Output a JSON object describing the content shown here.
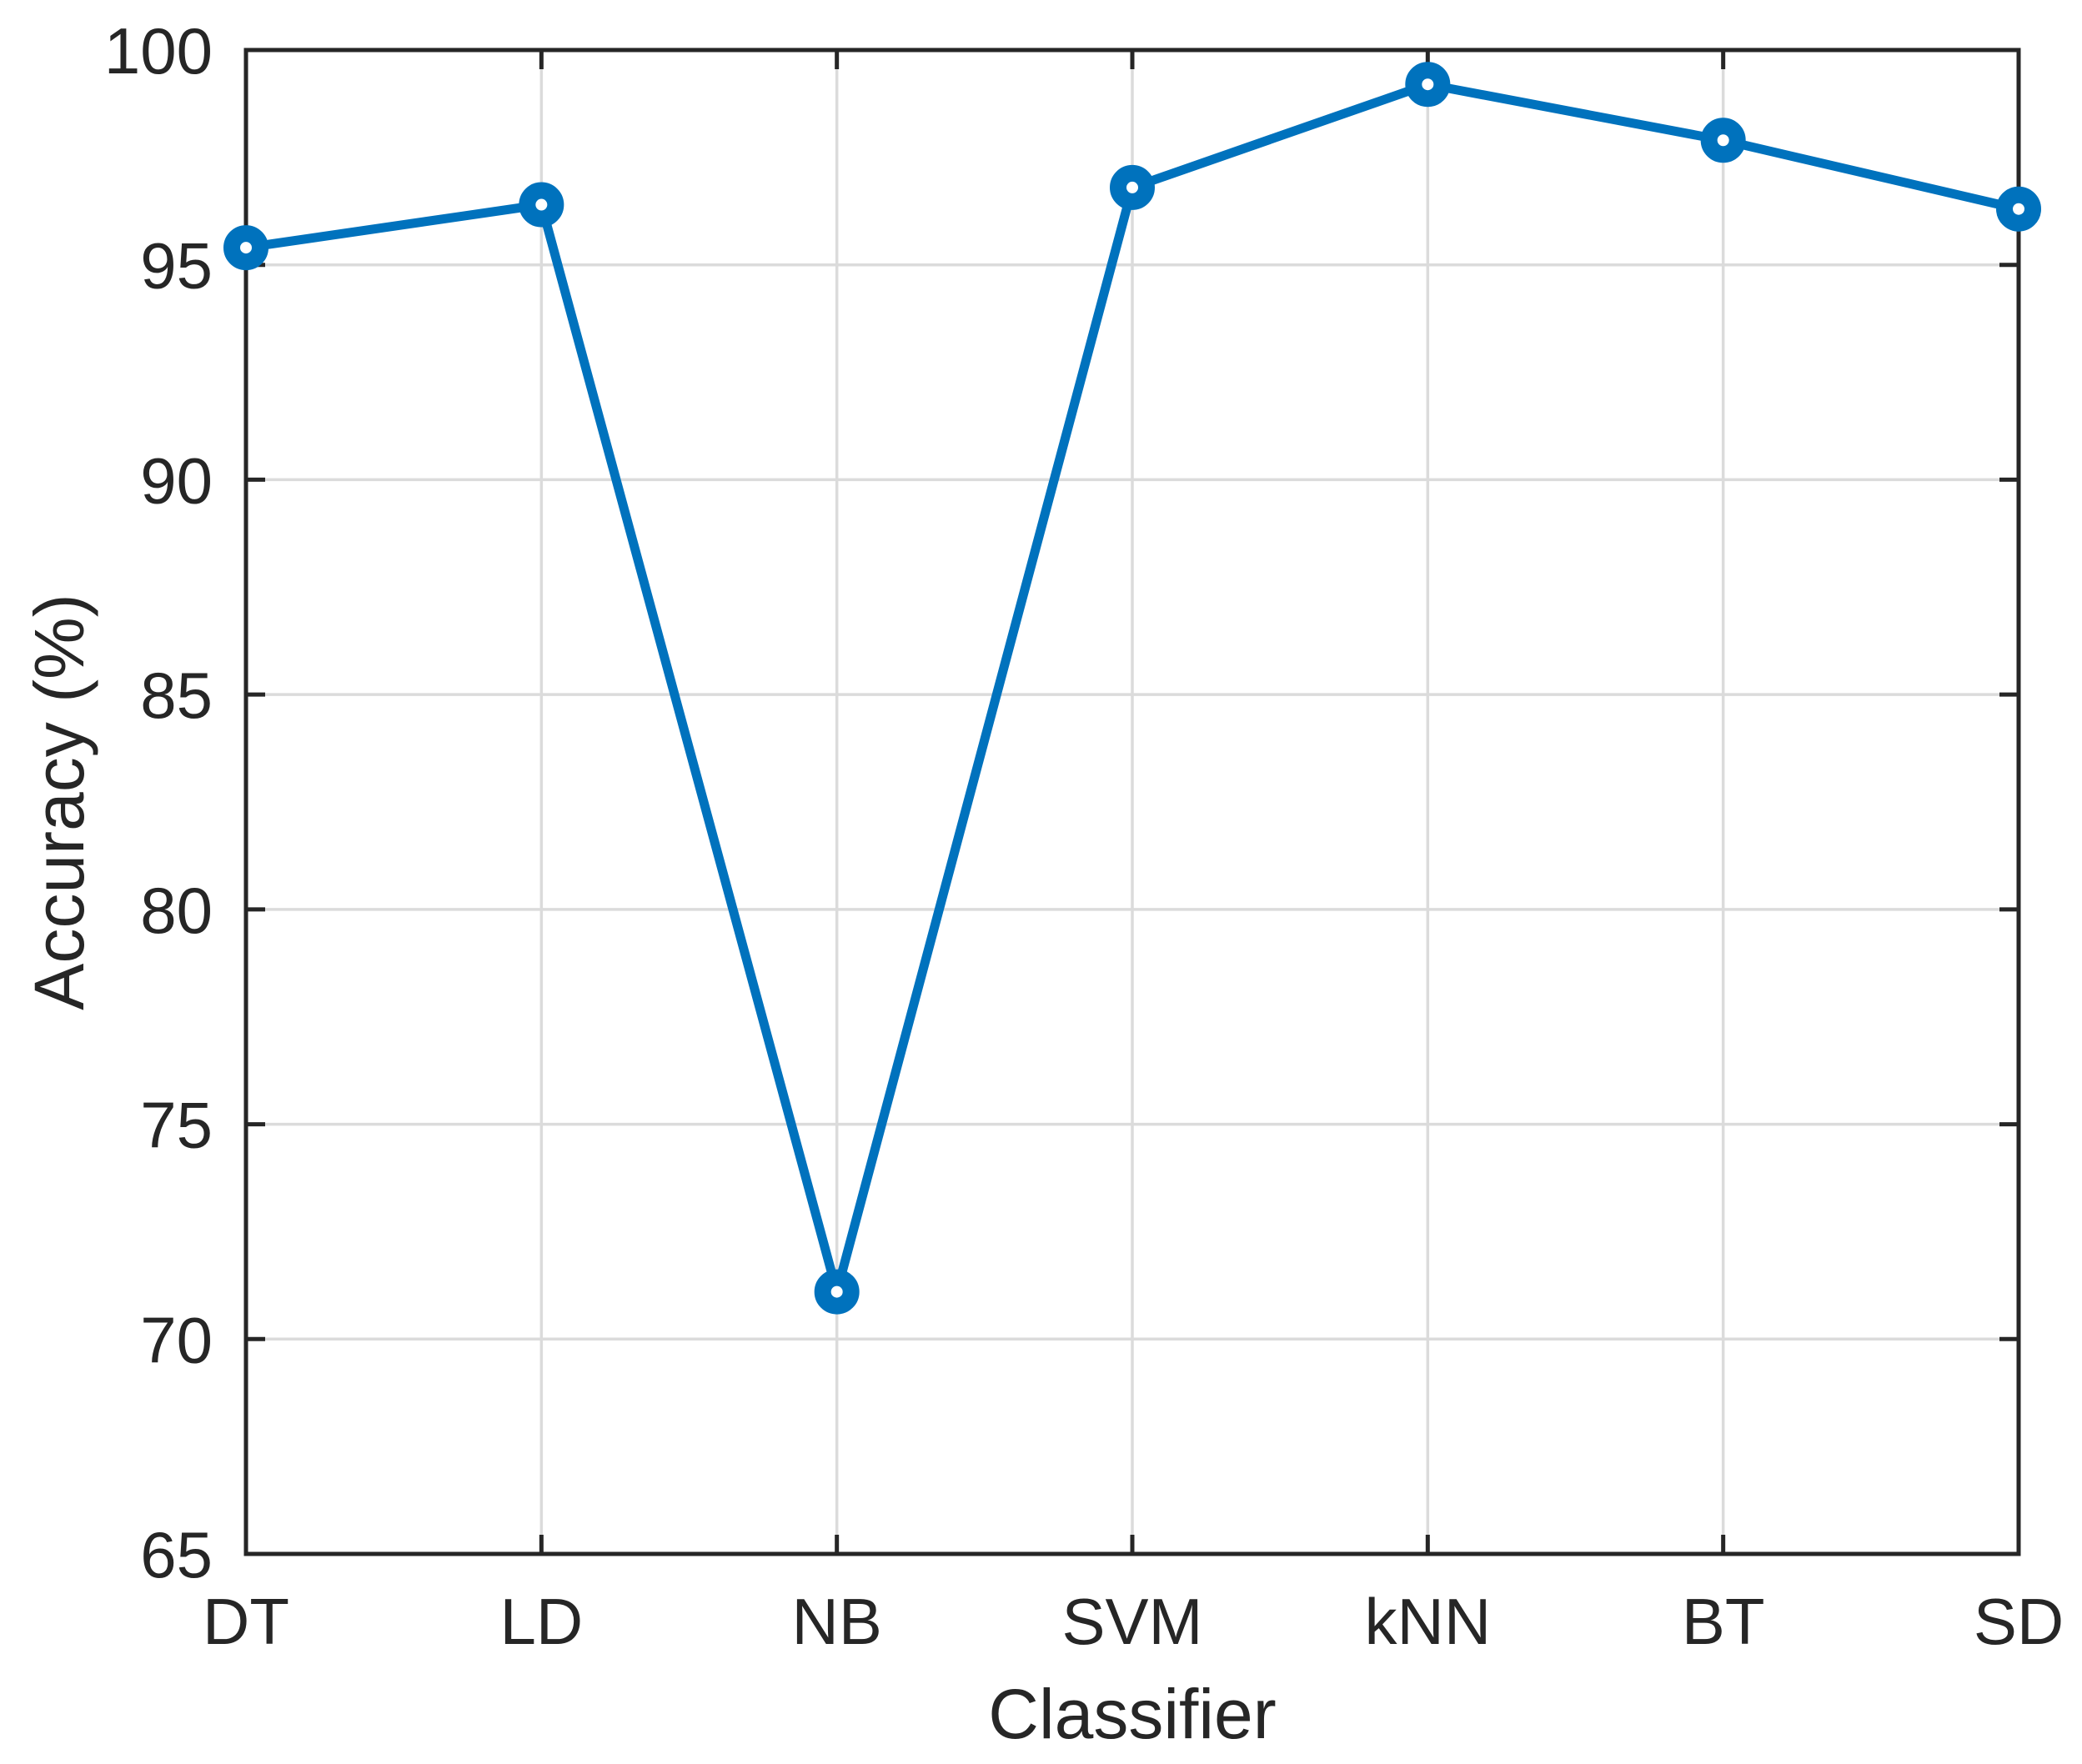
{
  "figure": {
    "background": "#ffffff"
  },
  "chart_data": {
    "type": "line",
    "categories": [
      "DT",
      "LD",
      "NB",
      "SVM",
      "kNN",
      "BT",
      "SD"
    ],
    "values": [
      95.4,
      96.4,
      71.1,
      96.8,
      99.2,
      97.9,
      96.3
    ],
    "title": "",
    "xlabel": "Classifier",
    "ylabel": "Accuracy (%)",
    "ylim": [
      65,
      100
    ],
    "yticks": [
      65,
      70,
      75,
      80,
      85,
      90,
      95,
      100
    ],
    "grid": "on",
    "legend": "none",
    "marker": "hollow-circle",
    "colors": {
      "line": "#0072BD",
      "grid": "#DBDBDB",
      "axis": "#262626",
      "tick_text": "#262626",
      "background": "#ffffff"
    }
  }
}
